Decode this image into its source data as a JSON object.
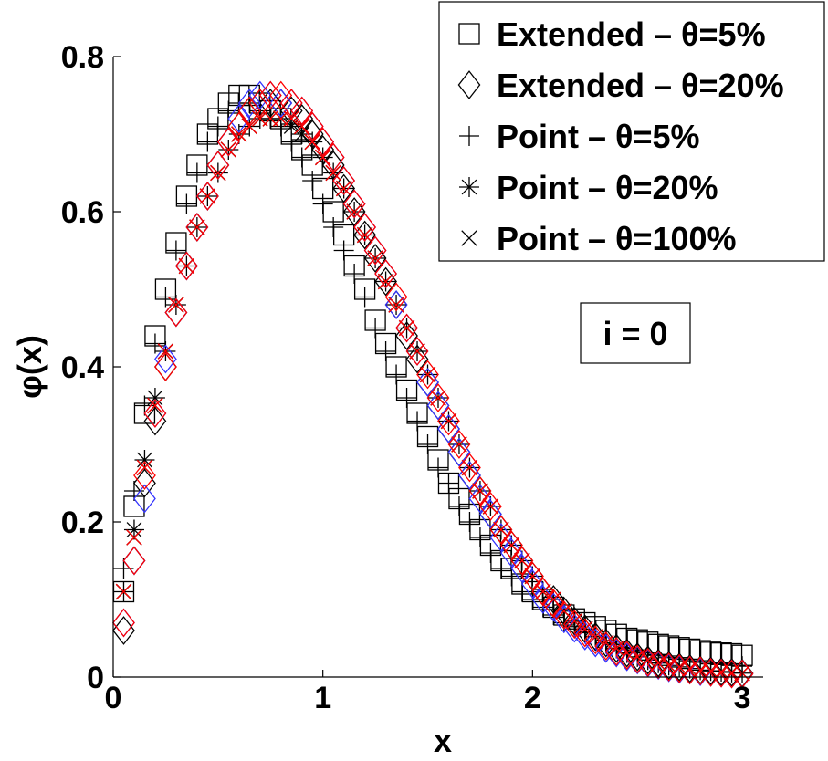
{
  "chart_data": {
    "type": "scatter",
    "title": "",
    "xlabel": "x",
    "ylabel": "φ(x)",
    "xlim": [
      0,
      3.1
    ],
    "ylim": [
      0,
      0.8
    ],
    "xticks": [
      "0",
      "1",
      "2",
      "3"
    ],
    "xtick_values": [
      0,
      1,
      2,
      3
    ],
    "yticks": [
      "0",
      "0.2",
      "0.4",
      "0.6",
      "0.8"
    ],
    "ytick_values": [
      0,
      0.2,
      0.4,
      0.6,
      0.8
    ],
    "grid": false,
    "legend_position": "top-right",
    "annotation": "i = 0",
    "colors": {
      "black": "#000000",
      "blue": "#3333ff",
      "red": "#ff0000"
    },
    "series": [
      {
        "name": "Extended – θ=5%",
        "marker": "square",
        "color": "#000000",
        "x": [
          0.05,
          0.1,
          0.15,
          0.2,
          0.25,
          0.3,
          0.35,
          0.4,
          0.45,
          0.5,
          0.55,
          0.6,
          0.65,
          0.7,
          0.75,
          0.8,
          0.85,
          0.9,
          0.95,
          1.0,
          1.05,
          1.1,
          1.15,
          1.2,
          1.25,
          1.3,
          1.35,
          1.4,
          1.45,
          1.5,
          1.55,
          1.6,
          1.65,
          1.7,
          1.75,
          1.8,
          1.85,
          1.9,
          1.95,
          2.0,
          2.05,
          2.1,
          2.15,
          2.2,
          2.25,
          2.3,
          2.35,
          2.4,
          2.45,
          2.5,
          2.55,
          2.6,
          2.65,
          2.7,
          2.75,
          2.8,
          2.85,
          2.9,
          2.95,
          3.0
        ],
        "y": [
          0.11,
          0.22,
          0.34,
          0.44,
          0.5,
          0.56,
          0.62,
          0.66,
          0.7,
          0.72,
          0.74,
          0.75,
          0.75,
          0.74,
          0.73,
          0.72,
          0.7,
          0.68,
          0.66,
          0.63,
          0.6,
          0.57,
          0.53,
          0.5,
          0.46,
          0.43,
          0.4,
          0.37,
          0.34,
          0.31,
          0.28,
          0.25,
          0.23,
          0.21,
          0.19,
          0.17,
          0.15,
          0.14,
          0.12,
          0.11,
          0.1,
          0.09,
          0.08,
          0.075,
          0.07,
          0.065,
          0.06,
          0.055,
          0.05,
          0.048,
          0.045,
          0.042,
          0.04,
          0.038,
          0.036,
          0.034,
          0.032,
          0.031,
          0.03,
          0.028
        ]
      },
      {
        "name": "Extended – θ=20%",
        "marker": "diamond",
        "color": "#000000",
        "x": [
          0.05,
          0.1,
          0.15,
          0.2,
          0.25,
          0.3,
          0.35,
          0.4,
          0.45,
          0.5,
          0.55,
          0.6,
          0.65,
          0.7,
          0.75,
          0.8,
          0.85,
          0.9,
          0.95,
          1.0,
          1.05,
          1.1,
          1.15,
          1.2,
          1.25,
          1.3,
          1.35,
          1.4,
          1.45,
          1.5,
          1.55,
          1.6,
          1.65,
          1.7,
          1.75,
          1.8,
          1.85,
          1.9,
          1.95,
          2.0,
          2.05,
          2.1,
          2.15,
          2.2,
          2.25,
          2.3,
          2.35,
          2.4,
          2.45,
          2.5,
          2.55,
          2.6,
          2.65,
          2.7,
          2.75,
          2.8,
          2.85,
          2.9,
          2.95,
          3.0
        ],
        "y": [
          0.06,
          0.15,
          0.25,
          0.33,
          0.4,
          0.47,
          0.53,
          0.58,
          0.62,
          0.66,
          0.69,
          0.71,
          0.73,
          0.74,
          0.74,
          0.74,
          0.73,
          0.72,
          0.7,
          0.68,
          0.66,
          0.63,
          0.6,
          0.57,
          0.54,
          0.51,
          0.48,
          0.44,
          0.41,
          0.38,
          0.35,
          0.32,
          0.29,
          0.26,
          0.24,
          0.21,
          0.19,
          0.17,
          0.15,
          0.13,
          0.11,
          0.1,
          0.085,
          0.072,
          0.062,
          0.052,
          0.044,
          0.037,
          0.031,
          0.026,
          0.022,
          0.018,
          0.015,
          0.013,
          0.011,
          0.009,
          0.008,
          0.007,
          0.006,
          0.005
        ]
      },
      {
        "name": "Point – θ=5%",
        "marker": "plus",
        "color": "#000000",
        "x": [
          0.05,
          0.1,
          0.15,
          0.2,
          0.25,
          0.3,
          0.35,
          0.4,
          0.45,
          0.5,
          0.55,
          0.6,
          0.65,
          0.7,
          0.75,
          0.8,
          0.85,
          0.9,
          0.95,
          1.0,
          1.05,
          1.1,
          1.15,
          1.2,
          1.25,
          1.3,
          1.35,
          1.4,
          1.45,
          1.5,
          1.55,
          1.6,
          1.65,
          1.7,
          1.75,
          1.8,
          1.85,
          1.9,
          1.95,
          2.0,
          2.05,
          2.1,
          2.15,
          2.2,
          2.25,
          2.3,
          2.35,
          2.4,
          2.45,
          2.5,
          2.55,
          2.6,
          2.65,
          2.7,
          2.75,
          2.8,
          2.85,
          2.9,
          2.95,
          3.0
        ],
        "y": [
          0.14,
          0.24,
          0.35,
          0.43,
          0.49,
          0.55,
          0.61,
          0.65,
          0.69,
          0.71,
          0.73,
          0.74,
          0.74,
          0.73,
          0.72,
          0.71,
          0.69,
          0.67,
          0.64,
          0.61,
          0.58,
          0.55,
          0.52,
          0.49,
          0.45,
          0.42,
          0.39,
          0.36,
          0.33,
          0.3,
          0.27,
          0.25,
          0.22,
          0.2,
          0.18,
          0.16,
          0.14,
          0.13,
          0.11,
          0.1,
          0.09,
          0.08,
          0.07,
          0.065,
          0.058,
          0.052,
          0.047,
          0.042,
          0.038,
          0.034,
          0.031,
          0.028,
          0.025,
          0.023,
          0.021,
          0.019,
          0.017,
          0.016,
          0.015,
          0.014
        ]
      },
      {
        "name": "Point – θ=20%",
        "marker": "asterisk",
        "color": "#000000",
        "x": [
          0.05,
          0.1,
          0.15,
          0.2,
          0.25,
          0.3,
          0.35,
          0.4,
          0.45,
          0.5,
          0.55,
          0.6,
          0.65,
          0.7,
          0.75,
          0.8,
          0.85,
          0.9,
          0.95,
          1.0,
          1.05,
          1.1,
          1.15,
          1.2,
          1.25,
          1.3,
          1.35,
          1.4,
          1.45,
          1.5,
          1.55,
          1.6,
          1.65,
          1.7,
          1.75,
          1.8,
          1.85,
          1.9,
          1.95,
          2.0,
          2.05,
          2.1,
          2.15,
          2.2,
          2.25,
          2.3,
          2.35,
          2.4,
          2.45,
          2.5,
          2.55,
          2.6,
          2.65,
          2.7,
          2.75,
          2.8,
          2.85,
          2.9,
          2.95,
          3.0
        ],
        "y": [
          0.11,
          0.19,
          0.28,
          0.36,
          0.42,
          0.48,
          0.53,
          0.58,
          0.62,
          0.65,
          0.68,
          0.7,
          0.71,
          0.72,
          0.72,
          0.72,
          0.71,
          0.7,
          0.69,
          0.67,
          0.65,
          0.63,
          0.6,
          0.57,
          0.54,
          0.51,
          0.48,
          0.45,
          0.42,
          0.39,
          0.36,
          0.33,
          0.3,
          0.27,
          0.24,
          0.22,
          0.19,
          0.17,
          0.15,
          0.13,
          0.11,
          0.1,
          0.085,
          0.072,
          0.062,
          0.052,
          0.044,
          0.037,
          0.031,
          0.026,
          0.022,
          0.018,
          0.015,
          0.013,
          0.011,
          0.009,
          0.008,
          0.007,
          0.006,
          0.005
        ]
      },
      {
        "name": "Point – θ=100%",
        "marker": "cross",
        "color": "#000000",
        "x": [
          0.05,
          0.1,
          0.15,
          0.2,
          0.25,
          0.3,
          0.35,
          0.4,
          0.45,
          0.5,
          0.55,
          0.6,
          0.65,
          0.7,
          0.75,
          0.8,
          0.85,
          0.9,
          0.95,
          1.0,
          1.05,
          1.1,
          1.15,
          1.2,
          1.25,
          1.3,
          1.35,
          1.4,
          1.45,
          1.5,
          1.55,
          1.6,
          1.65,
          1.7,
          1.75,
          1.8,
          1.85,
          1.9,
          1.95,
          2.0,
          2.05,
          2.1,
          2.15,
          2.2,
          2.25,
          2.3,
          2.35,
          2.4,
          2.45,
          2.5,
          2.55,
          2.6,
          2.65,
          2.7,
          2.75,
          2.8,
          2.85,
          2.9,
          2.95,
          3.0
        ],
        "y": [
          0.11,
          0.18,
          0.27,
          0.35,
          0.42,
          0.48,
          0.53,
          0.58,
          0.62,
          0.65,
          0.68,
          0.7,
          0.71,
          0.72,
          0.72,
          0.72,
          0.72,
          0.71,
          0.69,
          0.67,
          0.65,
          0.63,
          0.6,
          0.57,
          0.54,
          0.51,
          0.48,
          0.45,
          0.42,
          0.39,
          0.36,
          0.33,
          0.3,
          0.27,
          0.24,
          0.22,
          0.19,
          0.17,
          0.15,
          0.13,
          0.11,
          0.1,
          0.085,
          0.072,
          0.062,
          0.052,
          0.044,
          0.037,
          0.031,
          0.026,
          0.022,
          0.018,
          0.015,
          0.013,
          0.011,
          0.009,
          0.008,
          0.007,
          0.006,
          0.005
        ]
      },
      {
        "name": "Extended – θ=20% (blue)",
        "marker": "diamond",
        "color": "#3333ff",
        "in_legend": false,
        "x": [
          0.05,
          0.1,
          0.15,
          0.2,
          0.25,
          0.3,
          0.35,
          0.4,
          0.45,
          0.5,
          0.55,
          0.6,
          0.65,
          0.7,
          0.75,
          0.8,
          0.85,
          0.9,
          0.95,
          1.0,
          1.05,
          1.1,
          1.15,
          1.2,
          1.25,
          1.3,
          1.35,
          1.4,
          1.45,
          1.5,
          1.55,
          1.6,
          1.65,
          1.7,
          1.75,
          1.8,
          1.85,
          1.9,
          1.95,
          2.0,
          2.05,
          2.1,
          2.15,
          2.2,
          2.25,
          2.3,
          2.35,
          2.4,
          2.45,
          2.5,
          2.55,
          2.6,
          2.65,
          2.7,
          2.75,
          2.8,
          2.85,
          2.9,
          2.95,
          3.0
        ],
        "y": [
          0.07,
          0.15,
          0.23,
          0.34,
          0.41,
          0.47,
          0.53,
          0.58,
          0.62,
          0.66,
          0.69,
          0.72,
          0.74,
          0.75,
          0.75,
          0.74,
          0.74,
          0.73,
          0.71,
          0.69,
          0.67,
          0.64,
          0.61,
          0.58,
          0.55,
          0.52,
          0.48,
          0.45,
          0.42,
          0.38,
          0.35,
          0.32,
          0.29,
          0.26,
          0.23,
          0.21,
          0.18,
          0.16,
          0.14,
          0.12,
          0.1,
          0.09,
          0.075,
          0.063,
          0.053,
          0.044,
          0.037,
          0.031,
          0.026,
          0.022,
          0.018,
          0.015,
          0.012,
          0.01,
          0.009,
          0.007,
          0.006,
          0.005,
          0.004,
          0.004
        ]
      },
      {
        "name": "Extended – θ=20% (red)",
        "marker": "diamond",
        "color": "#ff0000",
        "in_legend": false,
        "x": [
          0.05,
          0.1,
          0.15,
          0.2,
          0.25,
          0.3,
          0.35,
          0.4,
          0.45,
          0.5,
          0.55,
          0.6,
          0.65,
          0.7,
          0.75,
          0.8,
          0.85,
          0.9,
          0.95,
          1.0,
          1.05,
          1.1,
          1.15,
          1.2,
          1.25,
          1.3,
          1.35,
          1.4,
          1.45,
          1.5,
          1.55,
          1.6,
          1.65,
          1.7,
          1.75,
          1.8,
          1.85,
          1.9,
          1.95,
          2.0,
          2.05,
          2.1,
          2.15,
          2.2,
          2.25,
          2.3,
          2.35,
          2.4,
          2.45,
          2.5,
          2.55,
          2.6,
          2.65,
          2.7,
          2.75,
          2.8,
          2.85,
          2.9,
          2.95,
          3.0
        ],
        "y": [
          0.07,
          0.15,
          0.26,
          0.34,
          0.4,
          0.47,
          0.53,
          0.58,
          0.62,
          0.66,
          0.69,
          0.71,
          0.73,
          0.74,
          0.75,
          0.75,
          0.74,
          0.73,
          0.71,
          0.69,
          0.67,
          0.64,
          0.61,
          0.58,
          0.55,
          0.52,
          0.49,
          0.45,
          0.42,
          0.39,
          0.36,
          0.33,
          0.3,
          0.27,
          0.24,
          0.22,
          0.19,
          0.17,
          0.15,
          0.13,
          0.11,
          0.095,
          0.08,
          0.068,
          0.057,
          0.048,
          0.04,
          0.033,
          0.028,
          0.023,
          0.019,
          0.016,
          0.013,
          0.011,
          0.009,
          0.008,
          0.006,
          0.005,
          0.004,
          0.004
        ]
      },
      {
        "name": "Point – θ=100% (red)",
        "marker": "cross",
        "color": "#ff0000",
        "in_legend": false,
        "x": [
          0.05,
          0.1,
          0.15,
          0.2,
          0.25,
          0.3,
          0.35,
          0.4,
          0.45,
          0.5,
          0.55,
          0.6,
          0.65,
          0.7,
          0.75,
          0.8,
          0.85,
          0.9,
          0.95,
          1.0,
          1.05,
          1.1,
          1.15,
          1.2,
          1.25,
          1.3,
          1.35,
          1.4,
          1.45,
          1.5,
          1.55,
          1.6,
          1.65,
          1.7,
          1.75,
          1.8,
          1.85,
          1.9,
          1.95,
          2.0,
          2.05,
          2.1,
          2.15,
          2.2,
          2.25,
          2.3,
          2.35,
          2.4,
          2.45,
          2.5,
          2.55,
          2.6,
          2.65,
          2.7,
          2.75,
          2.8,
          2.85,
          2.9,
          2.95,
          3.0
        ],
        "y": [
          0.11,
          0.18,
          0.27,
          0.35,
          0.42,
          0.48,
          0.53,
          0.58,
          0.62,
          0.65,
          0.68,
          0.7,
          0.71,
          0.72,
          0.72,
          0.72,
          0.72,
          0.71,
          0.69,
          0.67,
          0.65,
          0.63,
          0.6,
          0.57,
          0.54,
          0.51,
          0.48,
          0.45,
          0.42,
          0.39,
          0.36,
          0.33,
          0.3,
          0.27,
          0.24,
          0.22,
          0.19,
          0.17,
          0.15,
          0.13,
          0.11,
          0.1,
          0.085,
          0.072,
          0.062,
          0.052,
          0.044,
          0.037,
          0.031,
          0.026,
          0.022,
          0.018,
          0.015,
          0.013,
          0.011,
          0.009,
          0.008,
          0.007,
          0.006,
          0.005
        ]
      }
    ]
  }
}
